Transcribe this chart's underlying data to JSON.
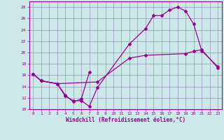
{
  "xlabel": "Windchill (Refroidissement éolien,°C)",
  "bg_color": "#cce8e8",
  "grid_color": "#9999bb",
  "line_color": "#990099",
  "xlim": [
    -0.5,
    23.5
  ],
  "ylim": [
    10,
    29
  ],
  "yticks": [
    10,
    12,
    14,
    16,
    18,
    20,
    22,
    24,
    26,
    28
  ],
  "xticks": [
    0,
    1,
    2,
    3,
    4,
    5,
    6,
    7,
    8,
    9,
    10,
    11,
    12,
    13,
    14,
    15,
    16,
    17,
    18,
    19,
    20,
    21,
    22,
    23
  ],
  "curve1_x": [
    0,
    1,
    3,
    4,
    5,
    6,
    7,
    8,
    12,
    14,
    15,
    16,
    17,
    18,
    19,
    20,
    21,
    23
  ],
  "curve1_y": [
    16.2,
    15.0,
    14.5,
    12.3,
    11.5,
    11.5,
    10.5,
    13.8,
    21.5,
    24.2,
    26.5,
    26.5,
    27.5,
    28.0,
    27.3,
    25.0,
    20.3,
    17.5
  ],
  "curve2_x": [
    0,
    1,
    3,
    4,
    5,
    6,
    7
  ],
  "curve2_y": [
    16.2,
    15.0,
    14.5,
    12.5,
    11.3,
    11.8,
    16.5
  ],
  "curve3_x": [
    0,
    1,
    3,
    8,
    12,
    14,
    19,
    20,
    21,
    23
  ],
  "curve3_y": [
    16.2,
    15.0,
    14.5,
    14.8,
    19.0,
    19.5,
    19.8,
    20.2,
    20.5,
    17.3
  ]
}
